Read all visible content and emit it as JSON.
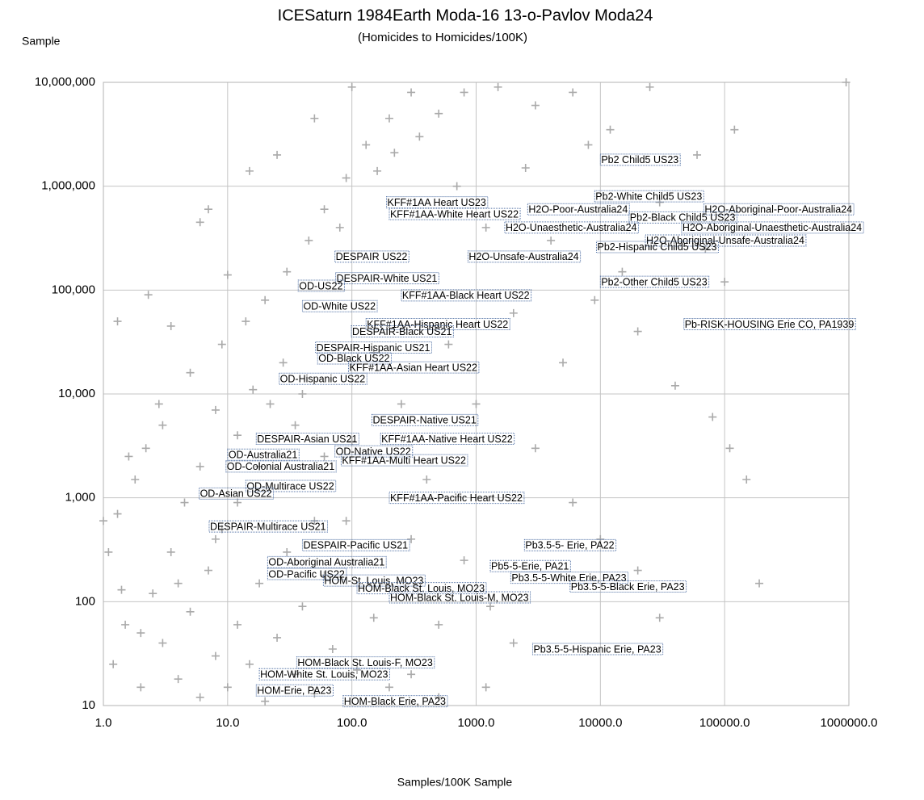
{
  "chart_data": {
    "type": "scatter",
    "title": "ICESaturn 1984Earth Moda-16 13-o-Pavlov Moda24",
    "subtitle": "(Homicides to Homicides/100K)",
    "y_label": "Sample",
    "x_label": "Samples/100K Sample",
    "xscale": "log",
    "yscale": "log",
    "grid": true,
    "xlim": [
      1,
      1000000
    ],
    "ylim": [
      10,
      10000000
    ],
    "xticks": [
      {
        "value": 1,
        "label": "1.0"
      },
      {
        "value": 10,
        "label": "10.0"
      },
      {
        "value": 100,
        "label": "100.0"
      },
      {
        "value": 1000,
        "label": "1000.0"
      },
      {
        "value": 10000,
        "label": "10000.0"
      },
      {
        "value": 100000,
        "label": "100000.0"
      },
      {
        "value": 1000000,
        "label": "1000000.0"
      }
    ],
    "yticks": [
      10,
      100,
      {
        "value": 1000,
        "label": "1,000"
      },
      {
        "value": 10000,
        "label": "10,000"
      },
      {
        "value": 100000,
        "label": "100,000"
      },
      {
        "value": 1000000,
        "label": "1,000,000"
      },
      {
        "value": 10000000,
        "label": "10,000,000"
      }
    ],
    "series": [
      {
        "color": "#aaaaaa",
        "x": [
          1.2,
          1.5,
          2,
          2.5,
          3,
          3.5,
          4,
          5,
          6,
          7,
          8,
          9,
          10,
          12,
          15,
          18,
          20,
          25,
          30,
          35,
          40,
          50,
          60,
          70,
          90,
          110,
          150,
          200,
          300,
          500,
          1.1,
          1.3,
          1.8,
          2.2,
          3,
          1.4,
          4.5,
          6,
          8,
          12,
          16,
          22,
          28,
          1.6,
          2.8,
          5,
          9,
          14,
          20,
          30,
          45,
          60,
          90,
          130,
          200,
          300,
          6,
          7,
          2.3,
          1.3,
          3.5,
          10,
          15,
          25,
          50,
          100,
          160,
          220,
          350,
          500,
          800,
          1500,
          3000,
          6000,
          12000,
          25000,
          60000,
          120000,
          950000,
          700,
          1200,
          2500,
          4000,
          8000,
          15000,
          30000,
          70000,
          100000,
          2000,
          5000,
          9000,
          20000,
          40000,
          80000,
          110000,
          150000,
          190000,
          600,
          1000,
          3000,
          6000,
          10000,
          20000,
          30000,
          1300,
          800,
          400,
          250,
          150,
          100,
          50,
          500,
          2000,
          300,
          1200,
          60,
          40,
          80,
          35,
          18,
          12,
          8,
          4,
          2,
          1
        ],
        "y": [
          25,
          60,
          15,
          120,
          40,
          300,
          18,
          80,
          12,
          200,
          30,
          500,
          15,
          60,
          25,
          150,
          11,
          45,
          300,
          20,
          90,
          13,
          180,
          35,
          600,
          22,
          70,
          15,
          400,
          12,
          300,
          700,
          1500,
          3000,
          5000,
          130,
          900,
          2000,
          7000,
          4000,
          11000,
          8000,
          20000,
          2500,
          8000,
          16000,
          30000,
          50000,
          80000,
          150000,
          300000,
          600000,
          1200000,
          2500000,
          4500000,
          8000000,
          450000,
          600000,
          90000,
          50000,
          45000,
          140000,
          1400000,
          2000000,
          4500000,
          9000000,
          1400000,
          2100000,
          3000000,
          5000000,
          8000000,
          9000000,
          6000000,
          8000000,
          3500000,
          9000000,
          2000000,
          3500000,
          10000000,
          1000000,
          400000,
          1500000,
          300000,
          2500000,
          150000,
          700000,
          250000,
          120000,
          60000,
          20000,
          80000,
          40000,
          12000,
          6000,
          3000,
          1500,
          150,
          30000,
          8000,
          3000,
          900,
          400,
          200,
          70,
          90,
          250,
          1500,
          8000,
          25000,
          3500,
          600,
          60,
          40,
          20,
          15,
          2500,
          10000,
          400000,
          5000,
          2000,
          900,
          400,
          150,
          50,
          600
        ]
      }
    ],
    "annotations": [
      {
        "text": "Pb2 Child5 US23",
        "x": 10000,
        "y": 1800000
      },
      {
        "text": "Pb2-White Child5 US23",
        "x": 9000,
        "y": 800000
      },
      {
        "text": "KFF#1AA Heart US23",
        "x": 190,
        "y": 700000
      },
      {
        "text": "H2O-Poor-Australia24",
        "x": 2600,
        "y": 600000
      },
      {
        "text": "H2O-Aboriginal-Poor-Australia24",
        "x": 68000,
        "y": 600000
      },
      {
        "text": "KFF#1AA-White Heart US22",
        "x": 200,
        "y": 540000
      },
      {
        "text": "Pb2-Black Child5 US23",
        "x": 17000,
        "y": 500000
      },
      {
        "text": "H2O-Unaesthetic-Australia24",
        "x": 1700,
        "y": 400000
      },
      {
        "text": "H2O-Aboriginal-Unaesthetic-Australia24",
        "x": 45000,
        "y": 400000
      },
      {
        "text": "H2O-Aboriginal-Unsafe-Australia24",
        "x": 23000,
        "y": 300000
      },
      {
        "text": "Pb2-Hispanic Child5 US23",
        "x": 9300,
        "y": 260000
      },
      {
        "text": "DESPAIR US22",
        "x": 73,
        "y": 210000
      },
      {
        "text": "H2O-Unsafe-Australia24",
        "x": 860,
        "y": 210000
      },
      {
        "text": "DESPAIR-White US21",
        "x": 74,
        "y": 130000
      },
      {
        "text": "Pb2-Other Child5 US23",
        "x": 10000,
        "y": 120000
      },
      {
        "text": "OD-US22",
        "x": 37,
        "y": 110000
      },
      {
        "text": "KFF#1AA-Black Heart US22",
        "x": 250,
        "y": 89000
      },
      {
        "text": "OD-White US22",
        "x": 40,
        "y": 70000
      },
      {
        "text": "Pb-RISK-HOUSING Erie CO, PA1939",
        "x": 47000,
        "y": 47000
      },
      {
        "text": "KFF#1AA-Hispanic Heart US22",
        "x": 130,
        "y": 47000
      },
      {
        "text": "DESPAIR-Black US21",
        "x": 99,
        "y": 40000
      },
      {
        "text": "DESPAIR-Hispanic US21",
        "x": 51,
        "y": 28000
      },
      {
        "text": "OD-Black US22",
        "x": 53,
        "y": 22000
      },
      {
        "text": "KFF#1AA-Asian Heart US22",
        "x": 94,
        "y": 18000
      },
      {
        "text": "OD-Hispanic US22",
        "x": 26,
        "y": 14000
      },
      {
        "text": "DESPAIR-Native US21",
        "x": 145,
        "y": 5600
      },
      {
        "text": "DESPAIR-Asian US21",
        "x": 17,
        "y": 3700
      },
      {
        "text": "KFF#1AA-Native Heart US22",
        "x": 170,
        "y": 3700
      },
      {
        "text": "OD-Native US22",
        "x": 73,
        "y": 2800
      },
      {
        "text": "OD-Australia21",
        "x": 10,
        "y": 2600
      },
      {
        "text": "KFF#1AA-Multi Heart US22",
        "x": 82,
        "y": 2300
      },
      {
        "text": "OD-Colonial Australia21",
        "x": 9.7,
        "y": 2000
      },
      {
        "text": "OD-Multirace US22",
        "x": 14,
        "y": 1300
      },
      {
        "text": "OD-Asian US22",
        "x": 5.9,
        "y": 1100
      },
      {
        "text": "KFF#1AA-Pacific Heart US22",
        "x": 200,
        "y": 1000
      },
      {
        "text": "DESPAIR-Multirace US21",
        "x": 7.1,
        "y": 530
      },
      {
        "text": "Pb3.5-5- Erie, PA22",
        "x": 2450,
        "y": 350
      },
      {
        "text": "DESPAIR-Pacific US21",
        "x": 40,
        "y": 350
      },
      {
        "text": "OD-Aboriginal Australia21",
        "x": 21,
        "y": 240
      },
      {
        "text": "Pb5-5-Erie, PA21",
        "x": 1300,
        "y": 220
      },
      {
        "text": "OD-Pacific US22",
        "x": 21,
        "y": 185
      },
      {
        "text": "Pb3.5-5-White Erie, PA23",
        "x": 1900,
        "y": 170
      },
      {
        "text": "HOM-St. Louis, MO23",
        "x": 59,
        "y": 160
      },
      {
        "text": "Pb3.5-5-Black Erie, PA23",
        "x": 5700,
        "y": 140
      },
      {
        "text": "HOM-Black St. Louis, MO23",
        "x": 110,
        "y": 135
      },
      {
        "text": "HOM-Black St. Louis-M, MO23",
        "x": 200,
        "y": 110
      },
      {
        "text": "Pb3.5-5-Hispanic Erie, PA23",
        "x": 2850,
        "y": 35
      },
      {
        "text": "HOM-Black St. Louis-F, MO23",
        "x": 36,
        "y": 26
      },
      {
        "text": "HOM-White St. Louis, MO23",
        "x": 18,
        "y": 20
      },
      {
        "text": "HOM-Erie, PA23",
        "x": 17,
        "y": 14
      },
      {
        "text": "HOM-Black Erie, PA23",
        "x": 85,
        "y": 11
      }
    ]
  }
}
